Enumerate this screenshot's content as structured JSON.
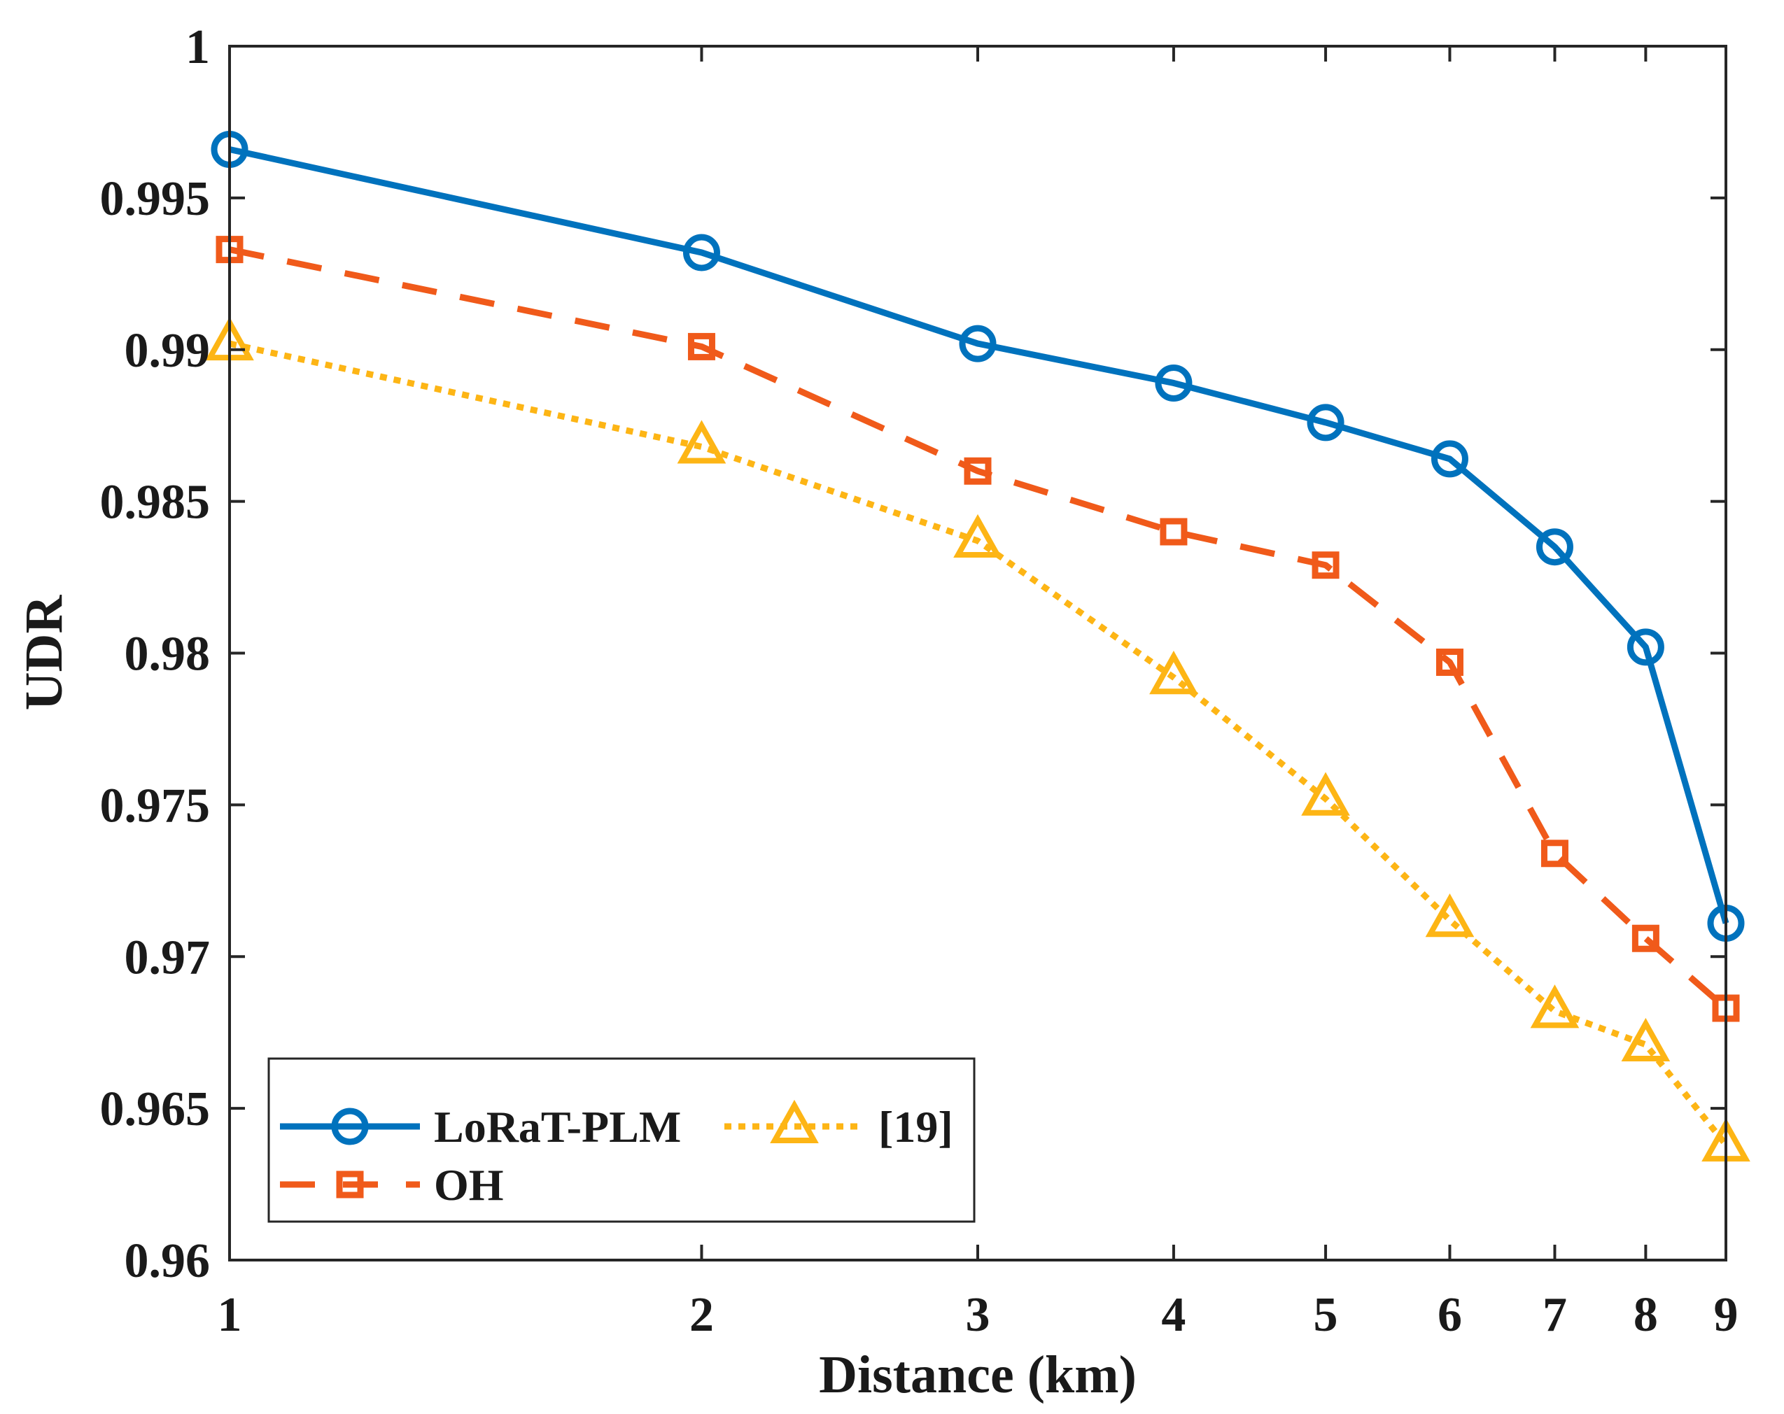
{
  "chart_data": {
    "type": "line",
    "title": "",
    "xlabel": "Distance (km)",
    "ylabel": "UDR",
    "x_scale": "log",
    "x": [
      1,
      2,
      3,
      4,
      5,
      6,
      7,
      8,
      9
    ],
    "xticks": [
      "1",
      "2",
      "3",
      "4",
      "5",
      "6",
      "7",
      "8",
      "9"
    ],
    "ylim": [
      0.96,
      1
    ],
    "yticks": [
      "0.96",
      "0.965",
      "0.97",
      "0.975",
      "0.98",
      "0.985",
      "0.99",
      "0.995",
      "1"
    ],
    "grid": false,
    "legend_position": "bottom-left",
    "series": [
      {
        "name": "LoRaT-PLM",
        "color": "#0072BD",
        "line_style": "solid",
        "marker": "circle",
        "values": [
          0.9966,
          0.9932,
          0.9902,
          0.9889,
          0.9876,
          0.9864,
          0.9835,
          0.9802,
          0.9711
        ]
      },
      {
        "name": "OH",
        "color": "#F05A1A",
        "line_style": "dashed",
        "marker": "square",
        "values": [
          0.9933,
          0.9901,
          0.986,
          0.984,
          0.9829,
          0.9797,
          0.9734,
          0.9706,
          0.9683
        ]
      },
      {
        "name": "[19]",
        "color": "#FDB515",
        "line_style": "dotted",
        "marker": "triangle",
        "values": [
          0.9902,
          0.9868,
          0.9837,
          0.9792,
          0.9752,
          0.9712,
          0.9682,
          0.9671,
          0.9638
        ]
      }
    ]
  }
}
